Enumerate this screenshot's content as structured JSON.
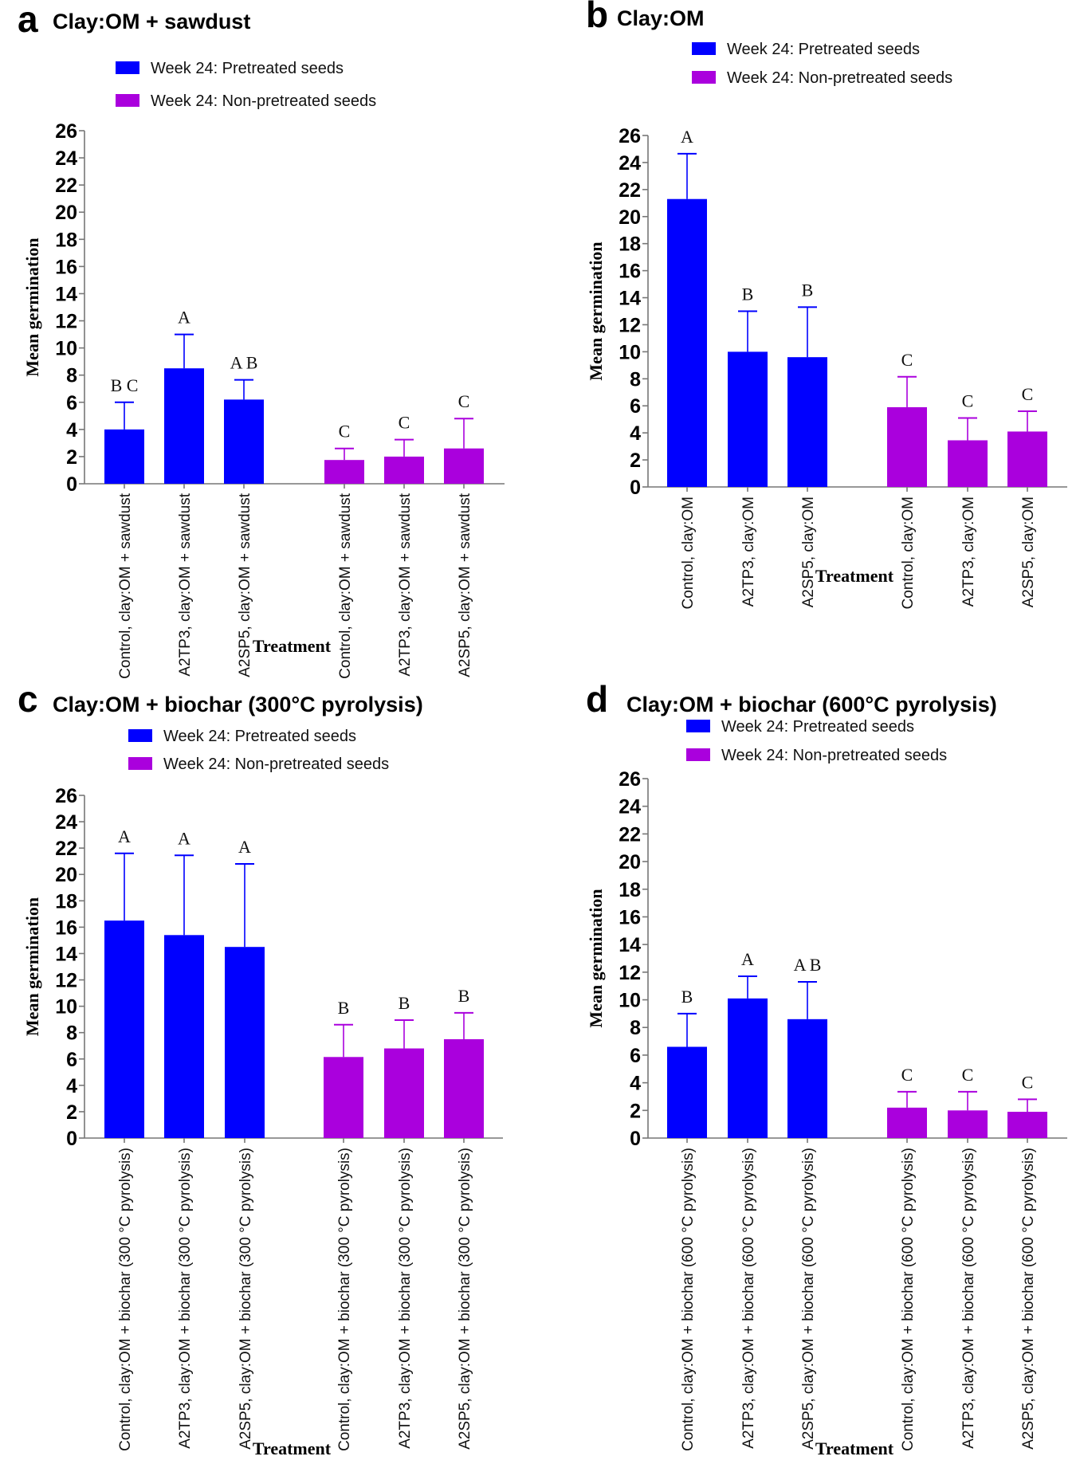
{
  "figure": {
    "colors": {
      "pretreated": "#0000FF",
      "non_pretreated": "#AA00DD"
    }
  },
  "chart_data": [
    {
      "type": "bar",
      "panel": "a",
      "title": "Clay:OM + sawdust",
      "xlabel": "Treatment",
      "ylabel": "Mean germination",
      "ylim": [
        0,
        26
      ],
      "yticks": [
        0,
        2,
        4,
        6,
        8,
        10,
        12,
        14,
        16,
        18,
        20,
        22,
        24,
        26
      ],
      "grid": false,
      "legend_position": "top-center",
      "legend": [
        "Week 24: Pretreated seeds",
        "Week 24: Non-pretreated seeds"
      ],
      "categories": [
        "Control, clay:OM + sawdust",
        "A2TP3, clay:OM + sawdust",
        "A2SP5, clay:OM + sawdust",
        "Control, clay:OM + sawdust",
        "A2TP3, clay:OM + sawdust",
        "A2SP5, clay:OM + sawdust"
      ],
      "series_index": [
        0,
        0,
        0,
        1,
        1,
        1
      ],
      "values": [
        4.0,
        8.5,
        6.2,
        1.75,
        2.0,
        2.6
      ],
      "error_upper": [
        6.0,
        11.0,
        7.65,
        2.6,
        3.25,
        4.8
      ],
      "significance": [
        "B C",
        "A",
        "A B",
        "C",
        "C",
        "C"
      ]
    },
    {
      "type": "bar",
      "panel": "b",
      "title": "Clay:OM",
      "xlabel": "Treatment",
      "ylabel": "Mean germination",
      "ylim": [
        0,
        26
      ],
      "yticks": [
        0,
        2,
        4,
        6,
        8,
        10,
        12,
        14,
        16,
        18,
        20,
        22,
        24,
        26
      ],
      "grid": false,
      "legend_position": "top-center",
      "legend": [
        "Week 24: Pretreated seeds",
        "Week 24: Non-pretreated seeds"
      ],
      "categories": [
        "Control, clay:OM",
        "A2TP3, clay:OM",
        "A2SP5, clay:OM",
        "Control, clay:OM",
        "A2TP3, clay:OM",
        "A2SP5, clay:OM"
      ],
      "series_index": [
        0,
        0,
        0,
        1,
        1,
        1
      ],
      "values": [
        21.3,
        10.0,
        9.6,
        5.9,
        3.45,
        4.1
      ],
      "error_upper": [
        24.65,
        13.0,
        13.3,
        8.15,
        5.1,
        5.6
      ],
      "significance": [
        "A",
        "B",
        "B",
        "C",
        "C",
        "C"
      ]
    },
    {
      "type": "bar",
      "panel": "c",
      "title": "Clay:OM + biochar (300°C pyrolysis)",
      "xlabel": "Treatment",
      "ylabel": "Mean germination",
      "ylim": [
        0,
        26
      ],
      "yticks": [
        0,
        2,
        4,
        6,
        8,
        10,
        12,
        14,
        16,
        18,
        20,
        22,
        24,
        26
      ],
      "grid": false,
      "legend_position": "top-center",
      "legend": [
        "Week 24: Pretreated seeds",
        "Week 24: Non-pretreated seeds"
      ],
      "categories": [
        "Control, clay:OM + biochar (300 °C pyrolysis)",
        "A2TP3, clay:OM + biochar (300 °C pyrolysis)",
        "A2SP5, clay:OM + biochar (300 °C pyrolysis)",
        "Control, clay:OM + biochar (300 °C pyrolysis)",
        "A2TP3, clay:OM + biochar (300 °C pyrolysis)",
        "A2SP5, clay:OM + biochar (300 °C pyrolysis)"
      ],
      "series_index": [
        0,
        0,
        0,
        1,
        1,
        1
      ],
      "values": [
        16.5,
        15.4,
        14.5,
        6.15,
        6.8,
        7.5
      ],
      "error_upper": [
        21.6,
        21.45,
        20.8,
        8.6,
        8.95,
        9.5
      ],
      "significance": [
        "A",
        "A",
        "A",
        "B",
        "B",
        "B"
      ]
    },
    {
      "type": "bar",
      "panel": "d",
      "title": "Clay:OM + biochar (600°C pyrolysis)",
      "xlabel": "Treatment",
      "ylabel": "Mean germination",
      "ylim": [
        0,
        26
      ],
      "yticks": [
        0,
        2,
        4,
        6,
        8,
        10,
        12,
        14,
        16,
        18,
        20,
        22,
        24,
        26
      ],
      "grid": false,
      "legend_position": "top-center",
      "legend": [
        "Week 24: Pretreated seeds",
        "Week 24: Non-pretreated seeds"
      ],
      "categories": [
        "Control, clay:OM + biochar (600 °C pyrolysis)",
        "A2TP3, clay:OM + biochar (600 °C pyrolysis)",
        "A2SP5, clay:OM + biochar (600 °C pyrolysis)",
        "Control, clay:OM + biochar (600 °C pyrolysis)",
        "A2TP3, clay:OM + biochar (600 °C pyrolysis)",
        "A2SP5, clay:OM + biochar (600 °C pyrolysis)"
      ],
      "series_index": [
        0,
        0,
        0,
        1,
        1,
        1
      ],
      "values": [
        6.6,
        10.1,
        8.6,
        2.2,
        2.0,
        1.9
      ],
      "error_upper": [
        9.0,
        11.7,
        11.3,
        3.35,
        3.35,
        2.8
      ],
      "significance": [
        "B",
        "A",
        "A B",
        "C",
        "C",
        "C"
      ]
    }
  ]
}
